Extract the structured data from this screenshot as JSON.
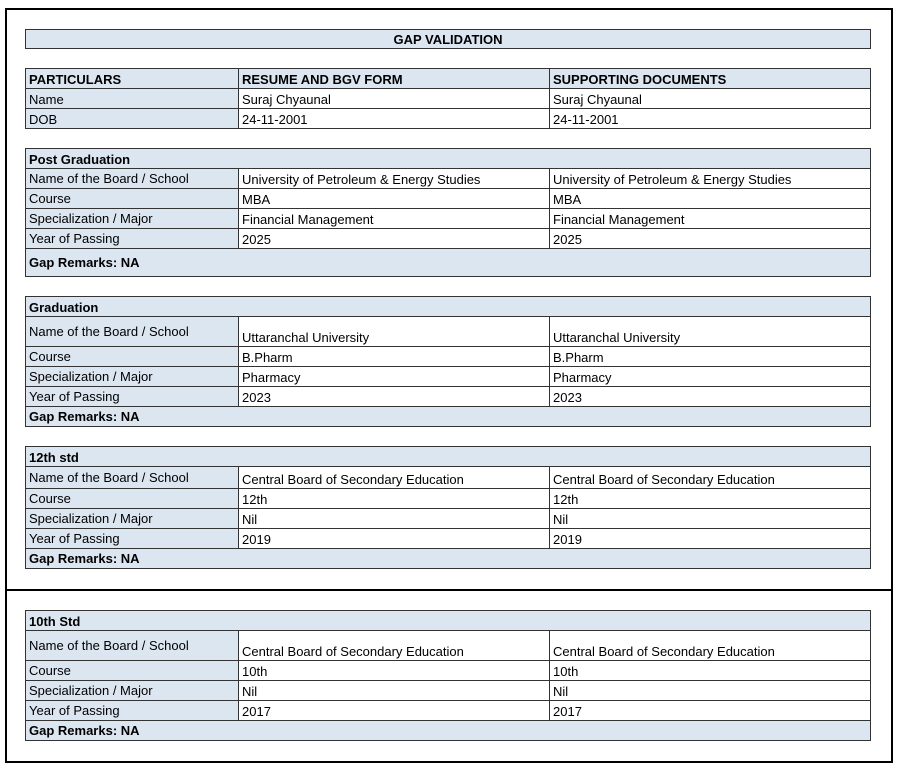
{
  "title": "GAP VALIDATION",
  "header": [
    "PARTICULARS",
    "RESUME AND BGV FORM",
    "SUPPORTING DOCUMENTS"
  ],
  "personal": [
    [
      "Name",
      "Suraj Chyaunal",
      "Suraj Chyaunal"
    ],
    [
      "DOB",
      "24-11-2001",
      "24-11-2001"
    ]
  ],
  "sections": [
    {
      "heading": "Post Graduation",
      "rows": [
        [
          "Name of the Board / School",
          "University of Petroleum & Energy Studies",
          "University of Petroleum & Energy Studies"
        ],
        [
          "Course",
          "MBA",
          "MBA"
        ],
        [
          "Specialization / Major",
          "Financial Management",
          "Financial Management"
        ],
        [
          "Year of Passing",
          "2025",
          "2025"
        ]
      ],
      "remarks": "Gap Remarks: NA"
    },
    {
      "heading": "Graduation",
      "rows": [
        [
          "Name of the Board / School",
          "Uttaranchal University",
          "Uttaranchal University"
        ],
        [
          "Course",
          "B.Pharm",
          "B.Pharm"
        ],
        [
          "Specialization / Major",
          "Pharmacy",
          "Pharmacy"
        ],
        [
          "Year of Passing",
          "2023",
          "2023"
        ]
      ],
      "remarks": "Gap Remarks: NA"
    },
    {
      "heading": "12th std",
      "rows": [
        [
          "Name of the Board / School",
          "Central Board of Secondary Education",
          "Central Board of Secondary Education"
        ],
        [
          "Course",
          "12th",
          "12th"
        ],
        [
          "Specialization / Major",
          "Nil",
          "Nil"
        ],
        [
          "Year of Passing",
          "2019",
          "2019"
        ]
      ],
      "remarks": "Gap Remarks: NA"
    },
    {
      "heading": "10th Std",
      "rows": [
        [
          "Name of the Board / School",
          "Central Board of Secondary Education",
          "Central Board of Secondary Education"
        ],
        [
          "Course",
          "10th",
          "10th"
        ],
        [
          "Specialization / Major",
          "Nil",
          "Nil"
        ],
        [
          "Year of Passing",
          "2017",
          "2017"
        ]
      ],
      "remarks": "Gap Remarks: NA"
    }
  ]
}
